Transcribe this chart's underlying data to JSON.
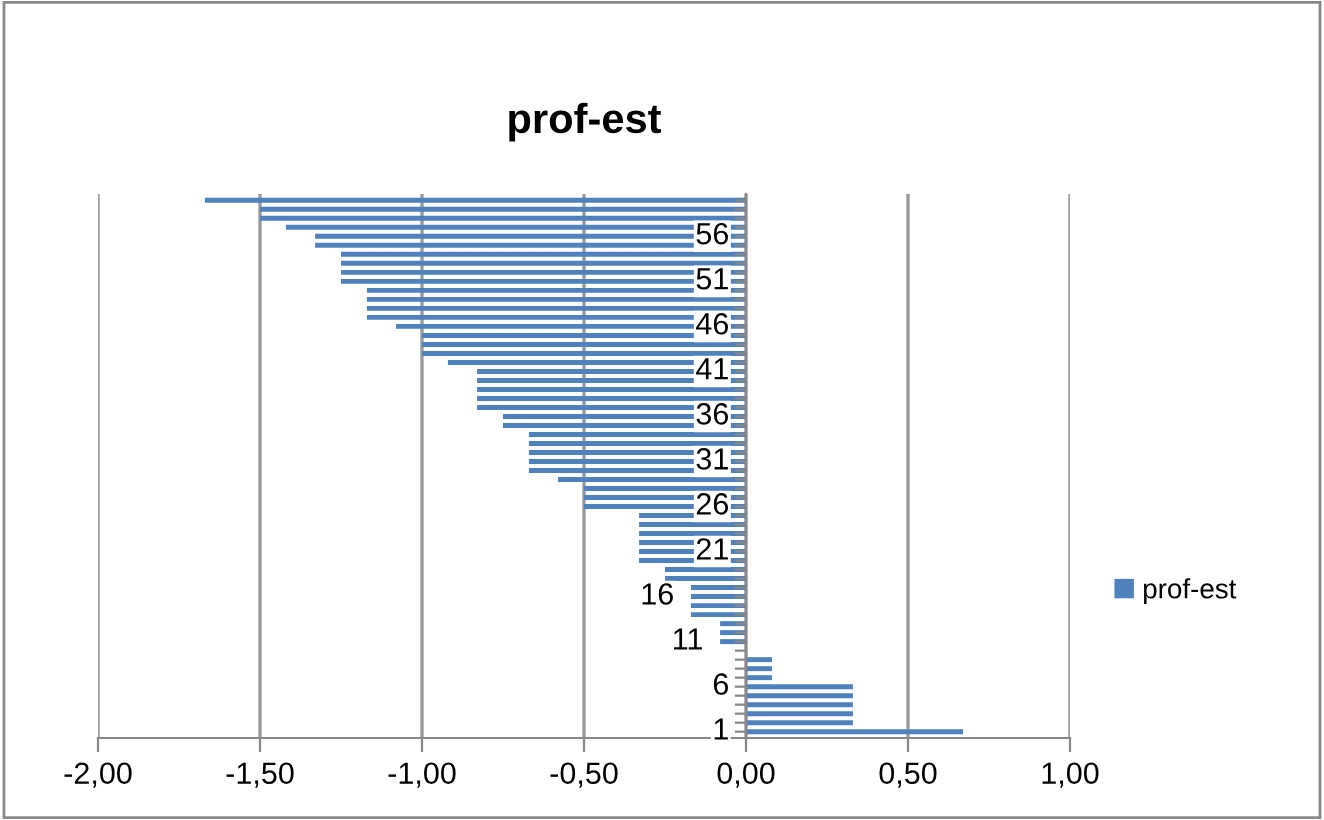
{
  "chart_data": {
    "type": "bar",
    "orientation": "horizontal",
    "title": "prof-est",
    "categories": [
      null,
      null,
      null,
      null,
      "56",
      null,
      null,
      null,
      null,
      "51",
      null,
      null,
      null,
      null,
      "46",
      null,
      null,
      null,
      null,
      "41",
      null,
      null,
      null,
      null,
      "36",
      null,
      null,
      null,
      null,
      "31",
      null,
      null,
      null,
      null,
      "26",
      null,
      null,
      null,
      null,
      "21",
      null,
      null,
      null,
      null,
      "16",
      null,
      null,
      null,
      null,
      "11",
      null,
      null,
      null,
      null,
      "6",
      null,
      null,
      null,
      null,
      "1"
    ],
    "series": [
      {
        "name": "prof-est",
        "color": "#4f81bd",
        "values": [
          -1.67,
          -1.5,
          -1.5,
          -1.42,
          -1.33,
          -1.33,
          -1.25,
          -1.25,
          -1.25,
          -1.25,
          -1.17,
          -1.17,
          -1.17,
          -1.17,
          -1.08,
          -1.0,
          -1.0,
          -1.0,
          -0.92,
          -0.83,
          -0.83,
          -0.83,
          -0.83,
          -0.83,
          -0.75,
          -0.75,
          -0.67,
          -0.67,
          -0.67,
          -0.67,
          -0.67,
          -0.58,
          -0.5,
          -0.5,
          -0.5,
          -0.33,
          -0.33,
          -0.33,
          -0.33,
          -0.33,
          -0.33,
          -0.25,
          -0.25,
          -0.17,
          -0.17,
          -0.17,
          -0.17,
          -0.08,
          -0.08,
          -0.08,
          0,
          0.08,
          0.08,
          0.08,
          0.33,
          0.33,
          0.33,
          0.33,
          0.33,
          0.67
        ]
      }
    ],
    "xlim": [
      -2,
      1
    ],
    "xticks": [
      {
        "value": -2,
        "label": "-2,00"
      },
      {
        "value": -1.5,
        "label": "-1,50"
      },
      {
        "value": -1,
        "label": "-1,00"
      },
      {
        "value": -0.5,
        "label": "-0,50"
      },
      {
        "value": 0,
        "label": "0,00"
      },
      {
        "value": 0.5,
        "label": "0,50"
      },
      {
        "value": 1,
        "label": "1,00"
      }
    ],
    "grid": "x",
    "legend": "right"
  }
}
